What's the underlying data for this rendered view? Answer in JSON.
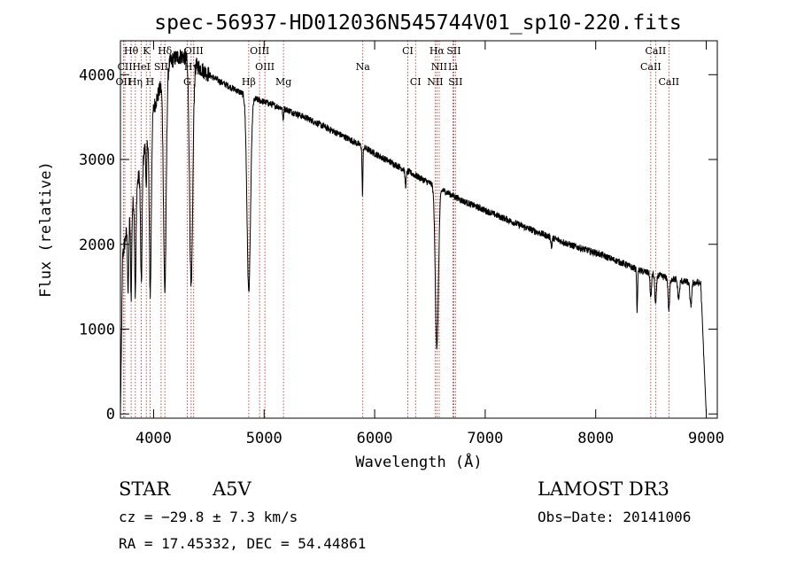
{
  "chart_data": {
    "type": "line",
    "title": "spec-56937-HD012036N545744V01_sp10-220.fits",
    "xlabel": "Wavelength (Å)",
    "ylabel": "Flux (relative)",
    "xlim": [
      3700,
      9100
    ],
    "ylim": [
      -50,
      4400
    ],
    "xticks": [
      4000,
      5000,
      6000,
      7000,
      8000,
      9000
    ],
    "yticks": [
      0,
      1000,
      2000,
      3000,
      4000
    ],
    "series": [
      {
        "name": "spectrum",
        "continuum": {
          "x": [
            3700,
            3750,
            3800,
            3850,
            3900,
            3950,
            4000,
            4050,
            4100,
            4150,
            4200,
            4250,
            4300,
            4350,
            4400,
            4450,
            4500,
            4600,
            4700,
            4800,
            4900,
            5000,
            5200,
            5400,
            5600,
            5800,
            6000,
            6200,
            6400,
            6600,
            6700,
            6800,
            7000,
            7200,
            7400,
            7600,
            7800,
            8000,
            8200,
            8400,
            8600,
            8800,
            8950,
            9000
          ],
          "y": [
            1700,
            2100,
            2400,
            2700,
            3000,
            3300,
            3600,
            3800,
            4000,
            4150,
            4200,
            4220,
            4200,
            4150,
            4100,
            4050,
            4000,
            3920,
            3850,
            3780,
            3720,
            3680,
            3590,
            3480,
            3350,
            3220,
            3070,
            2930,
            2790,
            2650,
            2580,
            2510,
            2400,
            2290,
            2180,
            2080,
            1980,
            1900,
            1800,
            1690,
            1620,
            1560,
            1540,
            0
          ]
        },
        "absorption_lines": [
          {
            "center": 3770,
            "depth": 800,
            "width": 5
          },
          {
            "center": 3797,
            "depth": 1000,
            "width": 5
          },
          {
            "center": 3835,
            "depth": 1200,
            "width": 6
          },
          {
            "center": 3889,
            "depth": 1400,
            "width": 7
          },
          {
            "center": 3934,
            "depth": 600,
            "width": 4
          },
          {
            "center": 3970,
            "depth": 2000,
            "width": 9
          },
          {
            "center": 4102,
            "depth": 2550,
            "width": 12
          },
          {
            "center": 4340,
            "depth": 2700,
            "width": 14
          },
          {
            "center": 4861,
            "depth": 2300,
            "width": 16
          },
          {
            "center": 5172,
            "depth": 150,
            "width": 4
          },
          {
            "center": 5890,
            "depth": 550,
            "width": 4
          },
          {
            "center": 6280,
            "depth": 180,
            "width": 6
          },
          {
            "center": 6563,
            "depth": 1900,
            "width": 14
          },
          {
            "center": 7600,
            "depth": 120,
            "width": 5
          },
          {
            "center": 8498,
            "depth": 300,
            "width": 6
          },
          {
            "center": 8542,
            "depth": 350,
            "width": 7
          },
          {
            "center": 8662,
            "depth": 380,
            "width": 7
          },
          {
            "center": 8375,
            "depth": 500,
            "width": 4
          },
          {
            "center": 8750,
            "depth": 220,
            "width": 8
          },
          {
            "center": 8860,
            "depth": 280,
            "width": 8
          }
        ],
        "noise": 40
      }
    ],
    "spectral_lines": [
      {
        "label": "Hθ",
        "wave": 3797,
        "row": 0
      },
      {
        "label": "K",
        "wave": 3934,
        "row": 0
      },
      {
        "label": "Hδ",
        "wave": 4102,
        "row": 0
      },
      {
        "label": "OIII",
        "wave": 4363,
        "row": 0
      },
      {
        "label": "OIII",
        "wave": 4959,
        "row": 0
      },
      {
        "label": "CI",
        "wave": 6300,
        "row": 0
      },
      {
        "label": "Hα",
        "wave": 6563,
        "row": 0
      },
      {
        "label": "SII",
        "wave": 6716,
        "row": 0
      },
      {
        "label": "CaII",
        "wave": 8542,
        "row": 0
      },
      {
        "label": "CII",
        "wave": 3740,
        "row": 1
      },
      {
        "label": "HeI",
        "wave": 3889,
        "row": 1
      },
      {
        "label": "SII",
        "wave": 4068,
        "row": 1
      },
      {
        "label": "Hγ",
        "wave": 4340,
        "row": 1
      },
      {
        "label": "OIII",
        "wave": 5007,
        "row": 1
      },
      {
        "label": "Na",
        "wave": 5893,
        "row": 1
      },
      {
        "label": "NII",
        "wave": 6584,
        "row": 1
      },
      {
        "label": "Li",
        "wave": 6708,
        "row": 1
      },
      {
        "label": "CaII",
        "wave": 8498,
        "row": 1
      },
      {
        "label": "OII",
        "wave": 3727,
        "row": 2
      },
      {
        "label": "Hη",
        "wave": 3835,
        "row": 2
      },
      {
        "label": "H",
        "wave": 3968,
        "row": 2
      },
      {
        "label": "G",
        "wave": 4304,
        "row": 2
      },
      {
        "label": "Hβ",
        "wave": 4861,
        "row": 2
      },
      {
        "label": "Mg",
        "wave": 5175,
        "row": 2
      },
      {
        "label": "CI",
        "wave": 6370,
        "row": 2
      },
      {
        "label": "NII",
        "wave": 6548,
        "row": 2
      },
      {
        "label": "SII",
        "wave": 6731,
        "row": 2
      },
      {
        "label": "CaII",
        "wave": 8662,
        "row": 2
      }
    ]
  },
  "info": {
    "object_class": "STAR",
    "subclass": "A5V",
    "survey": "LAMOST DR3",
    "cz": "cz = −29.8 ± 7.3 km/s",
    "obs_date": "Obs−Date: 20141006",
    "coords": "RA =  17.45332, DEC =  54.44861"
  },
  "colors": {
    "spectrum": "#000000",
    "line_markers": "#b22222",
    "text": "#000000"
  }
}
